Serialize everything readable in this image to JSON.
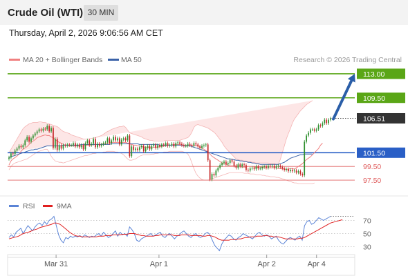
{
  "header": {
    "title": "Crude Oil (WTI)",
    "interval": "30 MIN",
    "datetime": "Thursday, April 2, 2026 9:06:56 AM CET"
  },
  "colors": {
    "bollinger": "#f08080",
    "band_fill": "#fde2e2",
    "ma50": "#3a62a8",
    "resistance": "#5aa616",
    "pivot": "#2a5fc6",
    "support": "#e06060",
    "candle_up": "#2f8f2f",
    "candle_down": "#c62828",
    "rsi": "#5b84d6",
    "rsi_ma": "#e02020",
    "price_tag": "#333333"
  },
  "chart_data": [
    {
      "type": "candlestick",
      "title": "",
      "legend": [
        {
          "name": "MA 20 + Bollinger Bands",
          "color": "#f08080"
        },
        {
          "name": "MA 50",
          "color": "#3a62a8"
        }
      ],
      "credit": "Research © 2026 Trading Central",
      "ylim": [
        96,
        114
      ],
      "x_labels": [
        {
          "label": "Mar 31",
          "at": 0.14
        },
        {
          "label": "Apr 1",
          "at": 0.46
        },
        {
          "label": "Apr 2",
          "at": 0.795
        },
        {
          "label": "Apr 4",
          "at": 0.95
        }
      ],
      "current_price": 106.51,
      "levels": [
        {
          "label": "113.00",
          "value": 113.0,
          "kind": "resistance"
        },
        {
          "label": "109.50",
          "value": 109.5,
          "kind": "resistance"
        },
        {
          "label": "101.50",
          "value": 101.5,
          "kind": "pivot"
        },
        {
          "label": "99.50",
          "value": 99.5,
          "kind": "support"
        },
        {
          "label": "97.50",
          "value": 97.5,
          "kind": "support"
        }
      ],
      "forecast_arrow": {
        "from": 106.4,
        "to": 113.0
      },
      "close": [
        100.8,
        101.4,
        101.3,
        101.8,
        102.1,
        102.5,
        102.3,
        102.6,
        103.3,
        103.8,
        103.1,
        103.6,
        104.0,
        104.3,
        104.6,
        104.9,
        104.7,
        105.0,
        104.9,
        105.4,
        104.6,
        105.1,
        102.2,
        103.5,
        101.9,
        102.6,
        102.1,
        102.6,
        102.5,
        102.7,
        102.6,
        102.6,
        102.9,
        102.4,
        102.7,
        102.3,
        102.6,
        102.0,
        102.9,
        103.3,
        102.6,
        102.8,
        103.5,
        102.3,
        102.8,
        102.5,
        102.7,
        102.9,
        103.0,
        103.6,
        102.9,
        103.3,
        103.8,
        103.3,
        103.6,
        102.7,
        103.4,
        103.6,
        103.3,
        104.0,
        101.0,
        102.4,
        101.9,
        102.1,
        101.9,
        102.3,
        102.5,
        101.7,
        102.2,
        102.5,
        102.0,
        102.5,
        102.7,
        102.2,
        102.6,
        102.4,
        102.7,
        102.6,
        102.9,
        102.5,
        102.6,
        102.8,
        102.4,
        102.9,
        103.0,
        102.8,
        102.6,
        102.5,
        102.5,
        102.8,
        102.6,
        102.5,
        102.9,
        102.7,
        102.4,
        102.2,
        102.5,
        102.6,
        102.7,
        100.4,
        97.6,
        98.4,
        98.2,
        98.9,
        99.3,
        99.7,
        100.0,
        100.2,
        99.8,
        100.0,
        100.4,
        100.2,
        99.6,
        99.3,
        99.8,
        99.5,
        99.8,
        99.7,
        99.0,
        98.9,
        99.2,
        99.3,
        99.1,
        99.5,
        99.2,
        99.2,
        99.4,
        99.5,
        99.3,
        99.6,
        99.5,
        99.6,
        99.3,
        99.5,
        99.6,
        99.4,
        99.2,
        99.0,
        99.1,
        98.8,
        99.0,
        98.8,
        98.9,
        98.6,
        98.8,
        98.4,
        98.2,
        103.1,
        104.0,
        104.4,
        104.9,
        104.9,
        104.7,
        104.9,
        105.5,
        105.4,
        105.8,
        106.3,
        105.8,
        106.3,
        106.5
      ],
      "ma20": [
        99.7,
        100.3,
        100.6,
        100.8,
        101.0,
        101.3,
        101.7,
        102.0,
        102.2,
        102.4,
        102.7,
        103.0,
        103.2,
        103.4,
        103.7,
        103.8,
        103.9,
        104.0,
        104.1,
        104.0,
        104.0,
        103.8,
        103.7,
        103.4,
        103.2,
        103.0,
        102.9,
        102.7,
        102.6,
        102.6,
        102.5,
        102.5,
        102.5,
        102.5,
        102.5,
        102.5,
        102.5,
        102.5,
        102.6,
        102.6,
        102.6,
        102.6,
        102.7,
        102.7,
        102.7,
        102.7,
        102.7,
        102.8,
        102.8,
        102.9,
        102.9,
        103.0,
        103.0,
        103.0,
        103.0,
        103.0,
        103.0,
        103.0,
        103.0,
        102.9,
        102.8,
        102.7,
        102.6,
        102.6,
        102.5,
        102.5,
        102.4,
        102.3,
        102.3,
        102.3,
        102.3,
        102.2,
        102.3,
        102.3,
        102.3,
        102.4,
        102.4,
        102.5,
        102.5,
        102.6,
        102.6,
        102.6,
        102.7,
        102.7,
        102.7,
        102.7,
        102.6,
        102.6,
        102.6,
        102.5,
        102.6,
        102.6,
        102.6,
        102.5,
        102.5,
        102.4,
        102.2,
        102.0,
        101.8,
        101.6,
        101.3,
        101.0,
        100.8,
        100.6,
        100.4,
        100.2,
        100.0,
        99.9,
        99.8,
        99.7,
        99.6,
        99.6,
        99.6,
        99.6,
        99.5,
        99.5,
        99.4,
        99.4,
        99.4,
        99.5,
        99.5,
        99.5,
        99.4,
        99.4,
        99.4,
        99.4,
        99.4,
        99.3,
        99.3,
        99.3,
        99.3,
        99.3,
        99.3,
        99.3,
        99.2,
        99.2,
        99.2,
        99.1,
        99.1,
        99.1,
        99.2,
        99.2,
        99.1,
        99.3,
        99.5,
        99.7,
        99.9,
        100.2,
        100.5,
        100.7,
        100.9,
        101.2,
        101.5,
        101.8,
        102.1,
        102.6,
        102.9
      ],
      "bb_upper": [
        101.5,
        102.0,
        102.5,
        103.0,
        103.5,
        104.0,
        104.5,
        105.0,
        105.3,
        105.5,
        105.7,
        105.8,
        105.9,
        105.9,
        105.9,
        106.0,
        106.0,
        105.9,
        105.9,
        105.8,
        105.7,
        105.6,
        105.5,
        105.4,
        105.3,
        105.1,
        104.8,
        104.6,
        104.5,
        104.4,
        104.3,
        104.1,
        104.0,
        103.9,
        103.8,
        103.7,
        103.6,
        103.5,
        103.5,
        103.5,
        103.5,
        103.6,
        103.6,
        103.7,
        103.8,
        103.9,
        104.0,
        104.2,
        104.4,
        104.6,
        104.7,
        104.9,
        105.0,
        105.1,
        105.2,
        105.3,
        105.3,
        105.4,
        105.2,
        104.8,
        104.4,
        104.3,
        104.2,
        104.1,
        104.0,
        103.9,
        103.8,
        103.6,
        103.5,
        103.4,
        103.3,
        103.3,
        103.2,
        103.2,
        103.2,
        103.2,
        103.2,
        103.2,
        103.3,
        103.3,
        103.3,
        103.3,
        103.3,
        103.3,
        103.3,
        103.3,
        103.4,
        103.5,
        103.6,
        103.7,
        104.0,
        104.5,
        105.2,
        105.5,
        105.6,
        105.5,
        105.4,
        105.3,
        105.2,
        105.1,
        104.9,
        104.7,
        104.5,
        104.2,
        103.8,
        103.4,
        103.0,
        102.5,
        102.1,
        101.8,
        101.5,
        101.2,
        100.9,
        100.6,
        100.5,
        100.4,
        100.4,
        100.3,
        100.3,
        100.2,
        100.2,
        100.1,
        100.1,
        100.0,
        100.0,
        100.0,
        100.0,
        100.0,
        100.0,
        100.0,
        99.9,
        99.9,
        99.9,
        99.8,
        99.8,
        100.5,
        101.5,
        102.5,
        103.5,
        104.3,
        105.0,
        105.8,
        106.4,
        106.8,
        107.2,
        107.6,
        107.9,
        108.2,
        108.5,
        108.7,
        108.9,
        109.1
      ],
      "bb_lower": [
        99.0,
        99.5,
        99.8,
        100.0,
        100.1,
        100.2,
        100.3,
        100.4,
        100.5,
        100.6,
        100.8,
        101.0,
        101.2,
        101.4,
        101.6,
        101.7,
        101.8,
        101.9,
        102.0,
        102.0,
        101.6,
        101.0,
        100.6,
        100.3,
        100.2,
        100.1,
        100.1,
        100.0,
        100.1,
        100.2,
        100.3,
        100.4,
        100.5,
        100.6,
        100.7,
        100.8,
        100.9,
        101.0,
        101.1,
        101.1,
        101.2,
        101.3,
        101.4,
        101.4,
        101.5,
        101.5,
        101.5,
        101.6,
        101.6,
        101.7,
        101.7,
        101.7,
        101.7,
        101.6,
        101.6,
        101.5,
        101.4,
        101.2,
        100.9,
        100.6,
        100.4,
        100.4,
        100.5,
        100.6,
        100.8,
        101.0,
        101.1,
        101.2,
        101.2,
        101.2,
        101.2,
        101.3,
        101.3,
        101.4,
        101.4,
        101.5,
        101.5,
        101.6,
        101.6,
        101.6,
        101.7,
        101.7,
        101.7,
        101.7,
        101.7,
        101.7,
        101.7,
        101.6,
        101.5,
        101.3,
        100.8,
        100.0,
        99.2,
        98.5,
        98.1,
        97.8,
        97.6,
        97.5,
        97.5,
        97.5,
        97.6,
        97.7,
        97.8,
        97.9,
        98.0,
        98.1,
        98.2,
        98.3,
        98.4,
        98.5,
        98.6,
        98.6,
        98.6,
        98.6,
        98.6,
        98.6,
        98.6,
        98.5,
        98.5,
        98.5,
        98.4,
        98.4,
        98.4,
        98.3,
        98.3,
        98.3,
        98.2,
        98.2,
        98.1,
        98.1,
        98.0,
        98.0,
        98.0,
        97.9,
        97.9,
        97.8,
        97.7,
        97.6,
        97.5,
        97.4,
        97.3,
        97.2,
        97.1,
        97.1,
        97.0,
        97.0,
        97.0,
        97.0,
        97.0,
        97.0,
        97.0,
        97.0,
        97.1
      ],
      "ma50": [
        100.8,
        100.9,
        101.0,
        101.1,
        101.2,
        101.3,
        101.4,
        101.5,
        101.6,
        101.7,
        101.8,
        101.9,
        101.9,
        102.0,
        102.0,
        102.1,
        102.2,
        102.3,
        102.4,
        102.5,
        102.5,
        102.5,
        102.5,
        102.5,
        102.5,
        102.5,
        102.5,
        102.6,
        102.6,
        102.6,
        102.6,
        102.6,
        102.6,
        102.6,
        102.6,
        102.6,
        102.7,
        102.7,
        102.7,
        102.7,
        102.7,
        102.7,
        102.7,
        102.7,
        102.7,
        102.7,
        102.7,
        102.7,
        102.7,
        102.7,
        102.7,
        102.8,
        102.8,
        102.8,
        102.8,
        102.8,
        102.8,
        102.8,
        102.8,
        102.8,
        102.8,
        102.8,
        102.8,
        102.8,
        102.8,
        102.7,
        102.7,
        102.7,
        102.7,
        102.7,
        102.7,
        102.7,
        102.7,
        102.7,
        102.7,
        102.6,
        102.6,
        102.6,
        102.6,
        102.6,
        102.6,
        102.6,
        102.6,
        102.6,
        102.6,
        102.6,
        102.6,
        102.5,
        102.5,
        102.5,
        102.5,
        102.4,
        102.3,
        102.2,
        102.1,
        102.0,
        101.9,
        101.8,
        101.7,
        101.6,
        101.5,
        101.4,
        101.3,
        101.2,
        101.1,
        101.0,
        100.9,
        100.8,
        100.7,
        100.6,
        100.6,
        100.5,
        100.5,
        100.4,
        100.4,
        100.3,
        100.3,
        100.2,
        100.2,
        100.1,
        100.1,
        100.0,
        100.0,
        99.9,
        99.9,
        99.8,
        99.8,
        99.8,
        99.8,
        99.8,
        99.8,
        99.8,
        99.8,
        99.8,
        99.8,
        99.9,
        100.0,
        100.1,
        100.3,
        100.5,
        100.7,
        100.8,
        100.9,
        101.0,
        101.1,
        101.2,
        101.2,
        101.3,
        101.3,
        101.3,
        101.3,
        101.3
      ]
    },
    {
      "type": "line",
      "legend": [
        {
          "name": "RSI",
          "color": "#5b84d6"
        },
        {
          "name": "9MA",
          "color": "#e02020"
        }
      ],
      "ylim": [
        15,
        85
      ],
      "y_ticks": [
        30,
        50,
        70
      ],
      "rsi": [
        44,
        48,
        45,
        52,
        55,
        58,
        50,
        56,
        62,
        58,
        54,
        60,
        64,
        66,
        62,
        68,
        64,
        70,
        72,
        76,
        62,
        48,
        40,
        36,
        44,
        42,
        46,
        44,
        46,
        45,
        47,
        44,
        48,
        46,
        44,
        46,
        45,
        48,
        50,
        46,
        52,
        48,
        44,
        46,
        50,
        54,
        46,
        52,
        48,
        50,
        46,
        60,
        56,
        50,
        40,
        38,
        42,
        44,
        46,
        48,
        50,
        46,
        48,
        50,
        52,
        46,
        44,
        48,
        50,
        46,
        42,
        46,
        48,
        52,
        54,
        50,
        46,
        44,
        48,
        50,
        46,
        44,
        46,
        50,
        52,
        48,
        40,
        32,
        28,
        24,
        34,
        40,
        44,
        48,
        46,
        42,
        40,
        44,
        46,
        50,
        48,
        46,
        44,
        42,
        46,
        50,
        52,
        48,
        46,
        48,
        46,
        42,
        44,
        46,
        40,
        36,
        34,
        38,
        42,
        44,
        42,
        40,
        44,
        46,
        40,
        62,
        68,
        70,
        64,
        66,
        70,
        74,
        72,
        70,
        72,
        74,
        76
      ],
      "rsi_ma": [
        42,
        43,
        44,
        45,
        46,
        48,
        50,
        51,
        52,
        53,
        55,
        56,
        57,
        59,
        60,
        61,
        62,
        63,
        64,
        66,
        66,
        65,
        63,
        60,
        57,
        54,
        51,
        49,
        47,
        46,
        46,
        45,
        45,
        45,
        45,
        45,
        45,
        45,
        46,
        46,
        46,
        47,
        47,
        47,
        48,
        48,
        48,
        48,
        49,
        49,
        49,
        50,
        50,
        50,
        49,
        48,
        47,
        47,
        46,
        46,
        46,
        46,
        47,
        47,
        48,
        48,
        48,
        48,
        48,
        48,
        47,
        47,
        47,
        48,
        48,
        48,
        48,
        47,
        47,
        47,
        47,
        47,
        46,
        46,
        47,
        47,
        46,
        45,
        43,
        41,
        40,
        40,
        40,
        40,
        41,
        41,
        41,
        42,
        42,
        43,
        44,
        44,
        45,
        45,
        45,
        46,
        46,
        46,
        47,
        47,
        46,
        46,
        45,
        45,
        45,
        44,
        43,
        42,
        42,
        42,
        42,
        42,
        42,
        43,
        43,
        44,
        46,
        48,
        50,
        52,
        54,
        56,
        58,
        60,
        62,
        64,
        66,
        67,
        68,
        69,
        70,
        71
      ]
    }
  ]
}
